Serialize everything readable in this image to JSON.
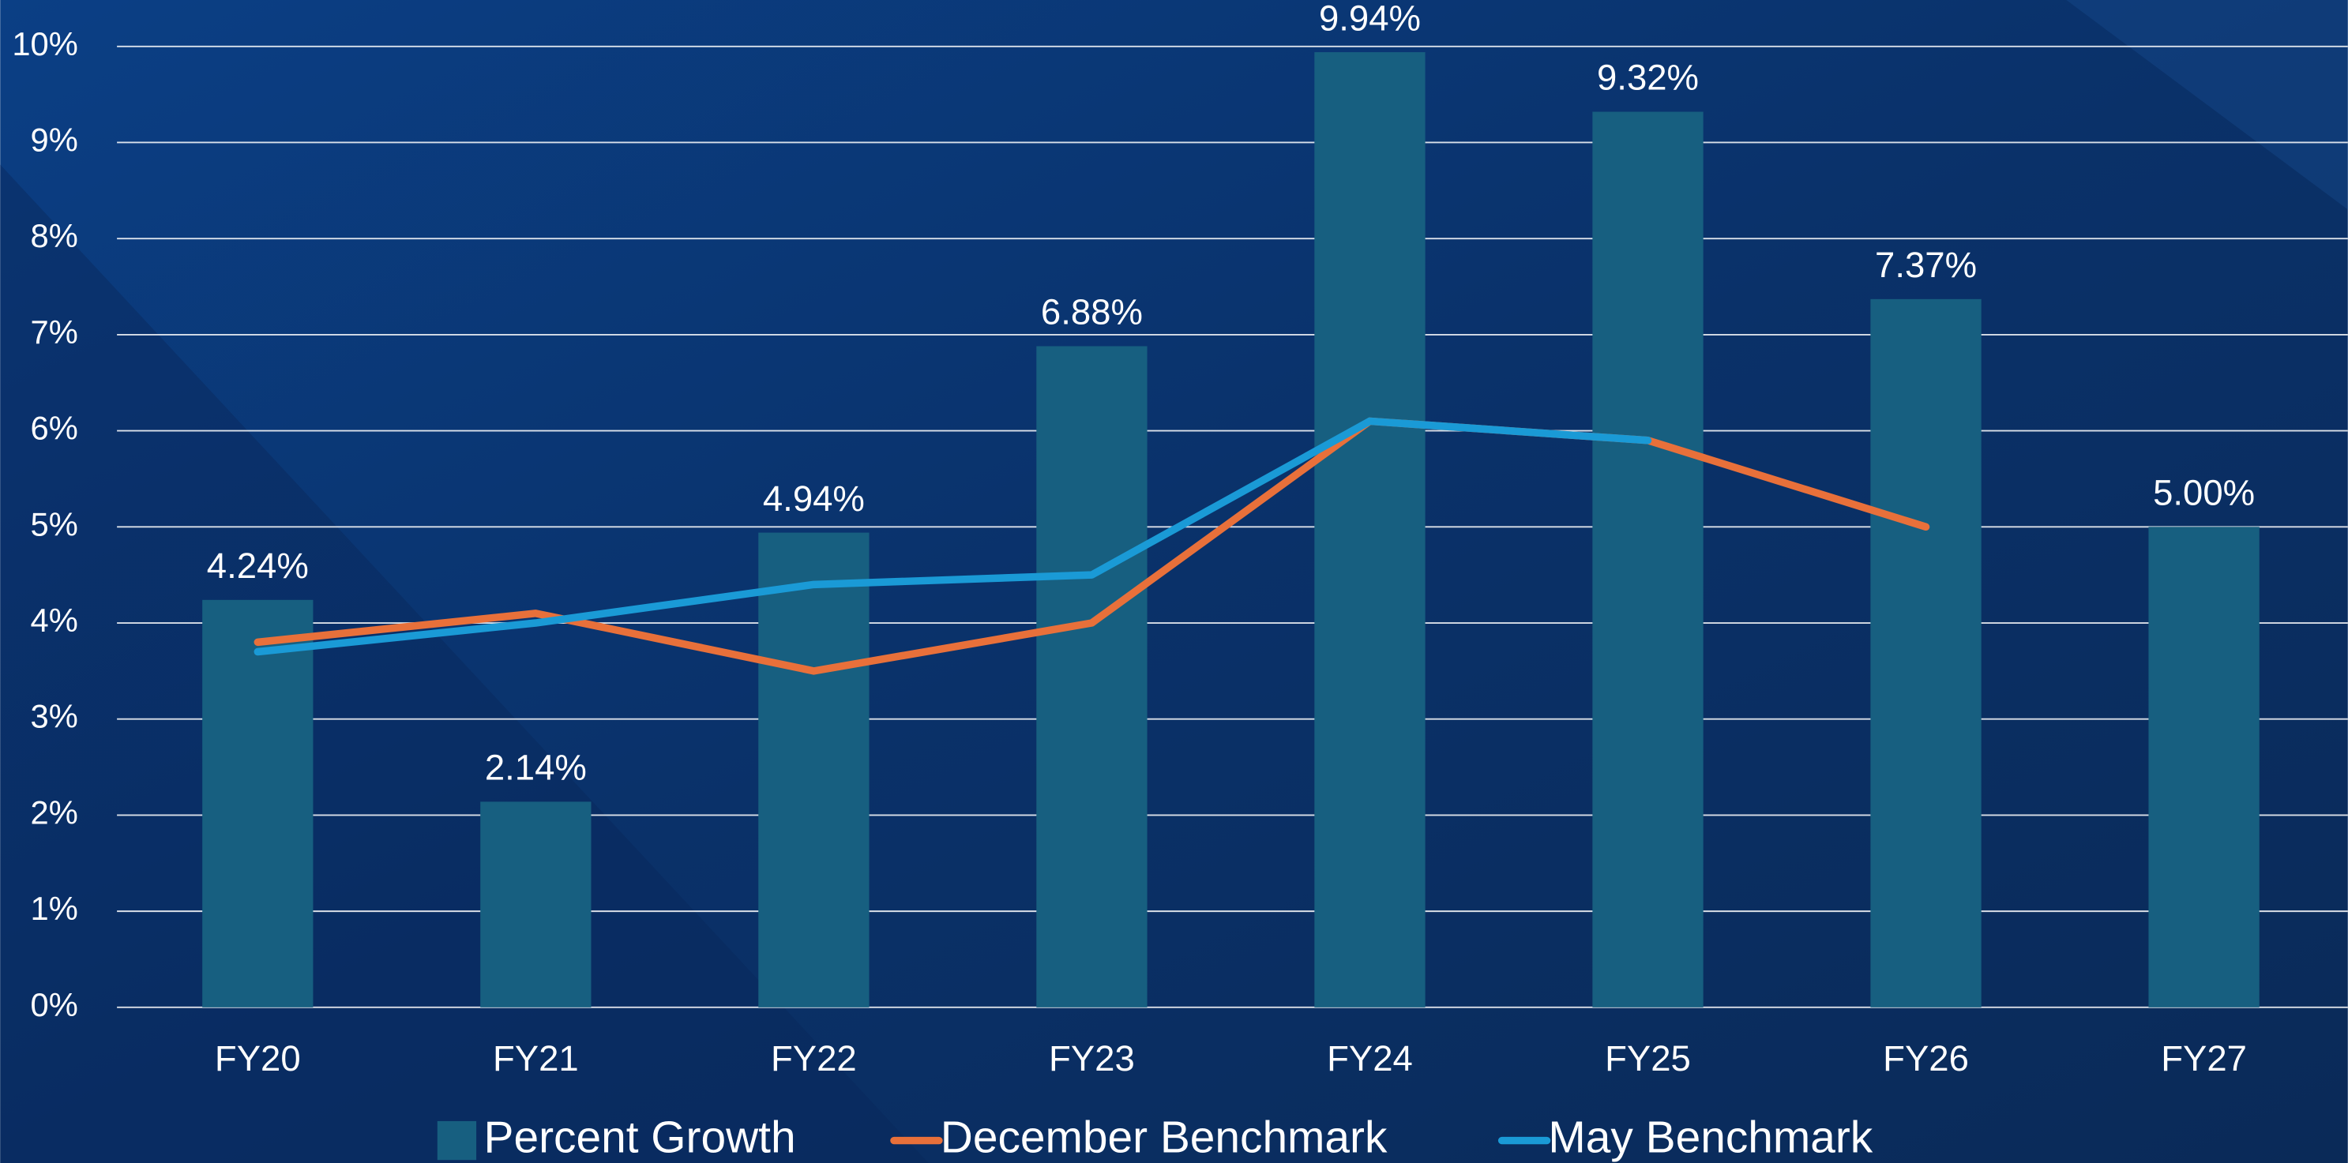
{
  "chart_data": {
    "type": "bar",
    "categories": [
      "FY20",
      "FY21",
      "FY22",
      "FY23",
      "FY24",
      "FY25",
      "FY26",
      "FY27"
    ],
    "series": [
      {
        "name": "Percent Growth",
        "type": "bar",
        "color": "#175f80",
        "values": [
          4.24,
          2.14,
          4.94,
          6.88,
          9.94,
          9.32,
          7.37,
          5.0
        ],
        "value_labels": [
          "4.24%",
          "2.14%",
          "4.94%",
          "6.88%",
          "9.94%",
          "9.32%",
          "7.37%",
          "5.00%"
        ]
      },
      {
        "name": "December Benchmark",
        "type": "line",
        "color": "#e8703a",
        "values": [
          3.8,
          4.1,
          3.5,
          4.0,
          6.1,
          5.9,
          5.0,
          null
        ]
      },
      {
        "name": "May Benchmark",
        "type": "line",
        "color": "#1a9ad6",
        "values": [
          3.7,
          4.0,
          4.4,
          4.5,
          6.1,
          5.9,
          null,
          null
        ]
      }
    ],
    "ylim": [
      0,
      10
    ],
    "yticks": [
      {
        "value": 0,
        "label": "0%"
      },
      {
        "value": 1,
        "label": "1%"
      },
      {
        "value": 2,
        "label": "2%"
      },
      {
        "value": 3,
        "label": "3%"
      },
      {
        "value": 4,
        "label": "4%"
      },
      {
        "value": 5,
        "label": "5%"
      },
      {
        "value": 6,
        "label": "6%"
      },
      {
        "value": 7,
        "label": "7%"
      },
      {
        "value": 8,
        "label": "8%"
      },
      {
        "value": 9,
        "label": "9%"
      },
      {
        "value": 10,
        "label": "10%"
      }
    ],
    "grid": true,
    "legend": "bottom"
  }
}
